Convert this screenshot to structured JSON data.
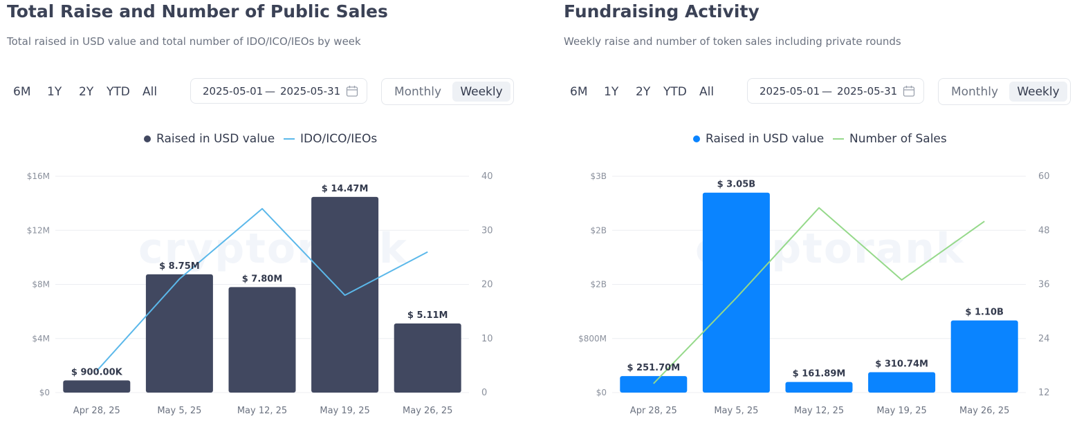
{
  "left": {
    "title": "Total Raise and Number of Public Sales",
    "subtitle": "Total raised in USD value and total number of IDO/ICO/IEOs by week",
    "ranges": [
      "6M",
      "1Y",
      "2Y",
      "YTD",
      "All"
    ],
    "date_from": "2025-05-01",
    "date_sep": "—",
    "date_to": "2025-05-31",
    "toggle": {
      "monthly": "Monthly",
      "weekly": "Weekly",
      "selected": "Weekly"
    },
    "watermark": "cryptorank"
  },
  "right": {
    "title": "Fundraising Activity",
    "subtitle": "Weekly raise and number of token sales including private rounds",
    "ranges": [
      "6M",
      "1Y",
      "2Y",
      "YTD",
      "All"
    ],
    "date_from": "2025-05-01",
    "date_sep": "—",
    "date_to": "2025-05-31",
    "toggle": {
      "monthly": "Monthly",
      "weekly": "Weekly",
      "selected": "Weekly"
    },
    "watermark": "cryptorank"
  },
  "chart_data": [
    {
      "type": "bar",
      "categories": [
        "Apr 28, 25",
        "May 5, 25",
        "May 12, 25",
        "May 19, 25",
        "May 26, 25"
      ],
      "series": [
        {
          "name": "Raised in USD value",
          "kind": "bar",
          "axis": "left",
          "color": "#414860",
          "values": [
            900000,
            8750000,
            7800000,
            14470000,
            5110000
          ],
          "labels": [
            "$ 900.00K",
            "$ 8.75M",
            "$ 7.80M",
            "$ 14.47M",
            "$ 5.11M"
          ]
        },
        {
          "name": "IDO/ICO/IEOs",
          "kind": "line",
          "axis": "right",
          "color": "#5bb8ea",
          "values": [
            4,
            21,
            34,
            18,
            26
          ]
        }
      ],
      "y_left": {
        "min": 0,
        "max": 16000000,
        "ticks": [
          "$0",
          "$4M",
          "$8M",
          "$12M",
          "$16M"
        ]
      },
      "y_right": {
        "min": 0,
        "max": 40,
        "ticks": [
          "0",
          "10",
          "20",
          "30",
          "40"
        ]
      },
      "grid": true,
      "legend": "top-center"
    },
    {
      "type": "bar",
      "categories": [
        "Apr 28, 25",
        "May 5, 25",
        "May 12, 25",
        "May 19, 25",
        "May 26, 25"
      ],
      "series": [
        {
          "name": "Raised in USD value",
          "kind": "bar",
          "axis": "left",
          "color": "#0a84ff",
          "values": [
            251700000,
            3050000000,
            161890000,
            310740000,
            1100000000
          ],
          "labels": [
            "$ 251.70M",
            "$ 3.05B",
            "$ 161.89M",
            "$ 310.74M",
            "$ 1.10B"
          ]
        },
        {
          "name": "Number of Sales",
          "kind": "line",
          "axis": "right",
          "color": "#95d98a",
          "values": [
            14,
            33,
            53,
            37,
            50
          ]
        }
      ],
      "y_left": {
        "min": 0,
        "max": 3300000000,
        "ticks": [
          "$0",
          "$800M",
          "$2B",
          "$2B",
          "$3B"
        ]
      },
      "y_right": {
        "min": 12,
        "max": 60,
        "ticks": [
          "12",
          "24",
          "36",
          "48",
          "60"
        ]
      },
      "grid": true,
      "legend": "top-center"
    }
  ]
}
